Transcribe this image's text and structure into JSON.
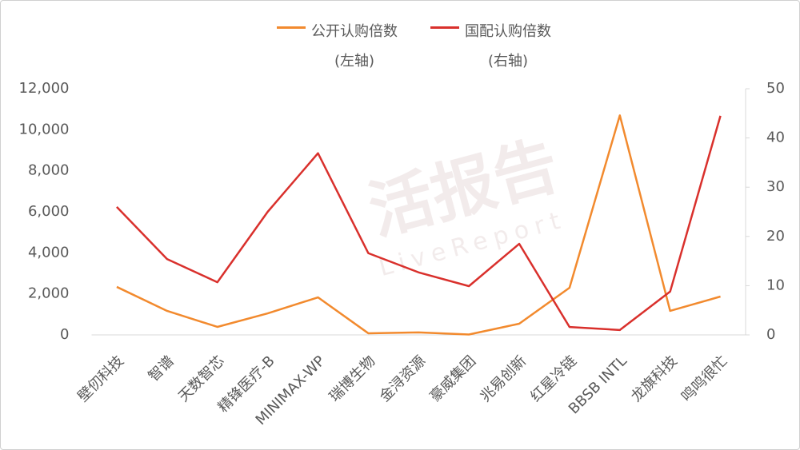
{
  "chart_data": {
    "type": "line",
    "categories": [
      "壁仞科技",
      "智谱",
      "天数智芯",
      "精锋医疗-B",
      "MINIMAX-WP",
      "瑞博生物",
      "金浔资源",
      "豪威集团",
      "兆易创新",
      "红星冷链",
      "BBSB INTL",
      "龙旗科技",
      "鸣鸣很忙"
    ],
    "series": [
      {
        "name": "公开认购倍数(左轴)",
        "color": "#f28a2e",
        "axis": "y",
        "values": [
          2340,
          1170,
          390,
          1050,
          1830,
          80,
          120,
          20,
          545,
          2300,
          10700,
          1170,
          1870
        ]
      },
      {
        "name": "国配认购倍数(右轴)",
        "color": "#d9302c",
        "axis": "y2",
        "values": [
          26,
          15.4,
          10.7,
          25,
          36.9,
          16.6,
          12.7,
          9.9,
          18.5,
          1.6,
          1.0,
          8.8,
          44.5
        ]
      }
    ],
    "ylim": [
      0,
      12000
    ],
    "yticks": [
      0,
      {
        "value": 2000,
        "label": "2,000"
      },
      {
        "value": 4000,
        "label": "4,000"
      },
      {
        "value": 6000,
        "label": "6,000"
      },
      {
        "value": 8000,
        "label": "8,000"
      },
      {
        "value": 10000,
        "label": "10,000"
      },
      {
        "value": 12000,
        "label": "12,000"
      }
    ],
    "y2lim": [
      0,
      50
    ],
    "y2ticks": [
      0,
      10,
      20,
      30,
      40,
      50
    ],
    "legend": "top",
    "watermark": "活报告",
    "watermark_sub": "LiveReport"
  }
}
